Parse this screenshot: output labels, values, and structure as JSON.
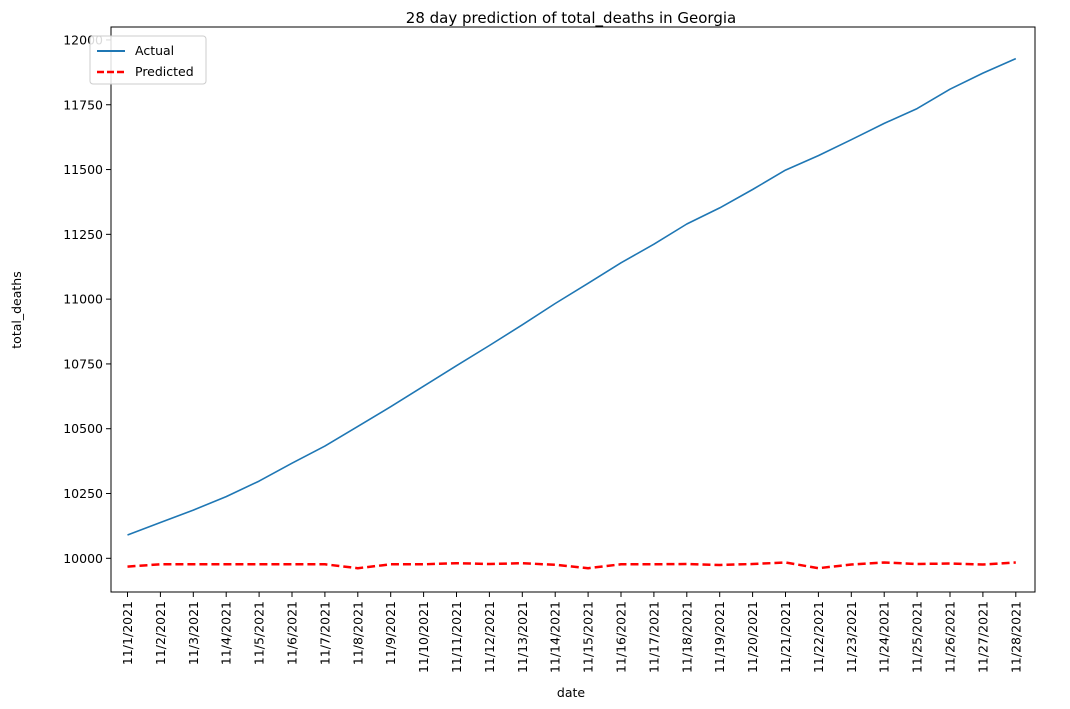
{
  "chart_data": {
    "type": "line",
    "title": "28 day prediction of total_deaths in Georgia",
    "xlabel": "date",
    "ylabel": "total_deaths",
    "ylim": [
      9870,
      12050
    ],
    "yticks": [
      10000,
      10250,
      10500,
      10750,
      11000,
      11250,
      11500,
      11750,
      12000
    ],
    "grid": false,
    "legend": "top-left",
    "categories": [
      "11/1/2021",
      "11/2/2021",
      "11/3/2021",
      "11/4/2021",
      "11/5/2021",
      "11/6/2021",
      "11/7/2021",
      "11/8/2021",
      "11/9/2021",
      "11/10/2021",
      "11/11/2021",
      "11/12/2021",
      "11/13/2021",
      "11/14/2021",
      "11/15/2021",
      "11/16/2021",
      "11/17/2021",
      "11/18/2021",
      "11/19/2021",
      "11/20/2021",
      "11/21/2021",
      "11/22/2021",
      "11/23/2021",
      "11/24/2021",
      "11/25/2021",
      "11/26/2021",
      "11/27/2021",
      "11/28/2021"
    ],
    "series": [
      {
        "name": "Actual",
        "color": "#1f77b4",
        "style": "solid",
        "values": [
          10090,
          10138,
          10186,
          10238,
          10298,
          10367,
          10433,
          10509,
          10585,
          10664,
          10743,
          10821,
          10901,
          10983,
          11061,
          11140,
          11212,
          11290,
          11352,
          11423,
          11498,
          11554,
          11615,
          11678,
          11735,
          11810,
          11872,
          11928
        ]
      },
      {
        "name": "Predicted",
        "color": "#ff0000",
        "style": "dashed",
        "values": [
          9968,
          9977,
          9977,
          9977,
          9977,
          9977,
          9977,
          9962,
          9977,
          9977,
          9981,
          9978,
          9981,
          9975,
          9962,
          9977,
          9977,
          9978,
          9974,
          9978,
          9984,
          9962,
          9976,
          9984,
          9978,
          9980,
          9976,
          9984
        ]
      }
    ]
  }
}
